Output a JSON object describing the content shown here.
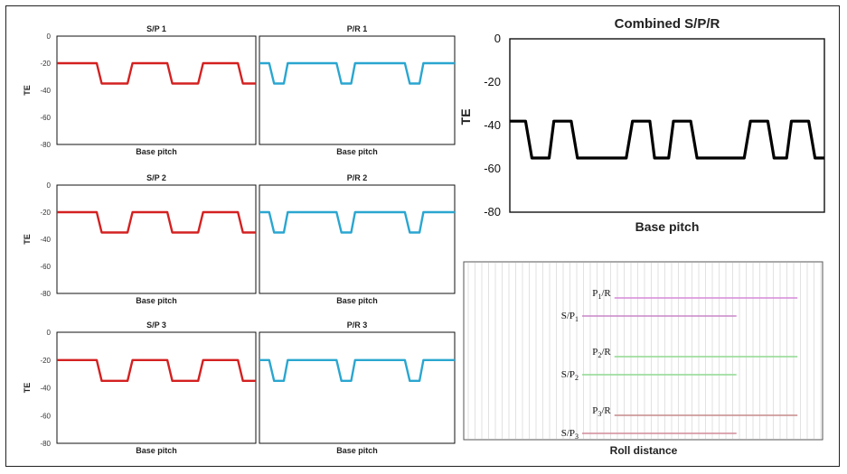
{
  "chart_data": [
    {
      "id": "sp1",
      "type": "line",
      "title": "S/P 1",
      "xlabel": "Base pitch",
      "ylabel": "TE",
      "ylim": [
        -80,
        0
      ],
      "yticks": [
        0,
        -20,
        -40,
        -60,
        -80
      ],
      "color": "#d42020",
      "high": -20,
      "low": -35,
      "pattern": [
        [
          0,
          -20
        ],
        [
          0.2,
          -20
        ],
        [
          0.225,
          -35
        ],
        [
          0.355,
          -35
        ],
        [
          0.38,
          -20
        ],
        [
          0.555,
          -20
        ],
        [
          0.58,
          -35
        ],
        [
          0.71,
          -35
        ],
        [
          0.735,
          -20
        ],
        [
          0.91,
          -20
        ],
        [
          0.935,
          -35
        ],
        [
          1,
          -35
        ]
      ]
    },
    {
      "id": "pr1",
      "type": "line",
      "title": "P/R 1",
      "xlabel": "Base pitch",
      "ylabel": "",
      "ylim": [
        -80,
        0
      ],
      "yticks": [],
      "color": "#2aa6d0",
      "high": -20,
      "low": -35,
      "pattern": [
        [
          0,
          -20
        ],
        [
          0.05,
          -20
        ],
        [
          0.075,
          -35
        ],
        [
          0.125,
          -35
        ],
        [
          0.145,
          -20
        ],
        [
          0.395,
          -20
        ],
        [
          0.42,
          -35
        ],
        [
          0.47,
          -35
        ],
        [
          0.49,
          -20
        ],
        [
          0.745,
          -20
        ],
        [
          0.77,
          -35
        ],
        [
          0.82,
          -35
        ],
        [
          0.84,
          -20
        ],
        [
          1,
          -20
        ]
      ]
    },
    {
      "id": "sp2",
      "type": "line",
      "title": "S/P 2",
      "xlabel": "Base pitch",
      "ylabel": "TE",
      "ylim": [
        -80,
        0
      ],
      "yticks": [
        0,
        -20,
        -40,
        -60,
        -80
      ],
      "color": "#d42020",
      "high": -20,
      "low": -35,
      "pattern": [
        [
          0,
          -20
        ],
        [
          0.2,
          -20
        ],
        [
          0.225,
          -35
        ],
        [
          0.355,
          -35
        ],
        [
          0.38,
          -20
        ],
        [
          0.555,
          -20
        ],
        [
          0.58,
          -35
        ],
        [
          0.71,
          -35
        ],
        [
          0.735,
          -20
        ],
        [
          0.91,
          -20
        ],
        [
          0.935,
          -35
        ],
        [
          1,
          -35
        ]
      ]
    },
    {
      "id": "pr2",
      "type": "line",
      "title": "P/R 2",
      "xlabel": "Base pitch",
      "ylabel": "",
      "ylim": [
        -80,
        0
      ],
      "yticks": [],
      "color": "#2aa6d0",
      "high": -20,
      "low": -35,
      "pattern": [
        [
          0,
          -20
        ],
        [
          0.05,
          -20
        ],
        [
          0.075,
          -35
        ],
        [
          0.125,
          -35
        ],
        [
          0.145,
          -20
        ],
        [
          0.395,
          -20
        ],
        [
          0.42,
          -35
        ],
        [
          0.47,
          -35
        ],
        [
          0.49,
          -20
        ],
        [
          0.745,
          -20
        ],
        [
          0.77,
          -35
        ],
        [
          0.82,
          -35
        ],
        [
          0.84,
          -20
        ],
        [
          1,
          -20
        ]
      ]
    },
    {
      "id": "sp3",
      "type": "line",
      "title": "S/P 3",
      "xlabel": "Base pitch",
      "ylabel": "TE",
      "ylim": [
        -80,
        0
      ],
      "yticks": [
        0,
        -20,
        -40,
        -60,
        -80
      ],
      "color": "#d42020",
      "high": -20,
      "low": -35,
      "pattern": [
        [
          0,
          -20
        ],
        [
          0.2,
          -20
        ],
        [
          0.225,
          -35
        ],
        [
          0.355,
          -35
        ],
        [
          0.38,
          -20
        ],
        [
          0.555,
          -20
        ],
        [
          0.58,
          -35
        ],
        [
          0.71,
          -35
        ],
        [
          0.735,
          -20
        ],
        [
          0.91,
          -20
        ],
        [
          0.935,
          -35
        ],
        [
          1,
          -35
        ]
      ]
    },
    {
      "id": "pr3",
      "type": "line",
      "title": "P/R 3",
      "xlabel": "Base pitch",
      "ylabel": "",
      "ylim": [
        -80,
        0
      ],
      "yticks": [],
      "color": "#2aa6d0",
      "high": -20,
      "low": -35,
      "pattern": [
        [
          0,
          -20
        ],
        [
          0.05,
          -20
        ],
        [
          0.075,
          -35
        ],
        [
          0.125,
          -35
        ],
        [
          0.145,
          -20
        ],
        [
          0.395,
          -20
        ],
        [
          0.42,
          -35
        ],
        [
          0.47,
          -35
        ],
        [
          0.49,
          -20
        ],
        [
          0.745,
          -20
        ],
        [
          0.77,
          -35
        ],
        [
          0.82,
          -35
        ],
        [
          0.84,
          -20
        ],
        [
          1,
          -20
        ]
      ]
    },
    {
      "id": "combined",
      "type": "line",
      "title": "Combined S/P/R",
      "xlabel": "Base pitch",
      "ylabel": "TE",
      "ylim": [
        -80,
        0
      ],
      "yticks": [
        0,
        -20,
        -40,
        -60,
        -80
      ],
      "color": "#000000",
      "high": -38,
      "low": -55,
      "pattern": [
        [
          0,
          -38
        ],
        [
          0.05,
          -38
        ],
        [
          0.07,
          -55
        ],
        [
          0.125,
          -55
        ],
        [
          0.14,
          -38
        ],
        [
          0.195,
          -38
        ],
        [
          0.215,
          -55
        ],
        [
          0.37,
          -55
        ],
        [
          0.39,
          -38
        ],
        [
          0.445,
          -38
        ],
        [
          0.46,
          -55
        ],
        [
          0.505,
          -55
        ],
        [
          0.52,
          -38
        ],
        [
          0.575,
          -38
        ],
        [
          0.595,
          -55
        ],
        [
          0.745,
          -55
        ],
        [
          0.765,
          -38
        ],
        [
          0.82,
          -38
        ],
        [
          0.84,
          -55
        ],
        [
          0.88,
          -55
        ],
        [
          0.895,
          -38
        ],
        [
          0.95,
          -38
        ],
        [
          0.97,
          -55
        ],
        [
          1,
          -55
        ]
      ]
    }
  ],
  "roll": {
    "xlabel": "Roll distance",
    "rows": [
      {
        "main": "P",
        "sub": "1",
        "suffix": "/R",
        "color": "#d58ad8",
        "start": 0.42,
        "end": 0.93
      },
      {
        "main": "S/P",
        "sub": "1",
        "suffix": "",
        "color": "#c985c8",
        "start": 0.33,
        "end": 0.76
      },
      {
        "main": "P",
        "sub": "2",
        "suffix": "/R",
        "color": "#8fd88f",
        "start": 0.42,
        "end": 0.93
      },
      {
        "main": "S/P",
        "sub": "2",
        "suffix": "",
        "color": "#8fd88f",
        "start": 0.33,
        "end": 0.76
      },
      {
        "main": "P",
        "sub": "3",
        "suffix": "/R",
        "color": "#c58a8a",
        "start": 0.42,
        "end": 0.93
      },
      {
        "main": "S/P",
        "sub": "3",
        "suffix": "",
        "color": "#d38a9a",
        "start": 0.33,
        "end": 0.76
      }
    ]
  }
}
